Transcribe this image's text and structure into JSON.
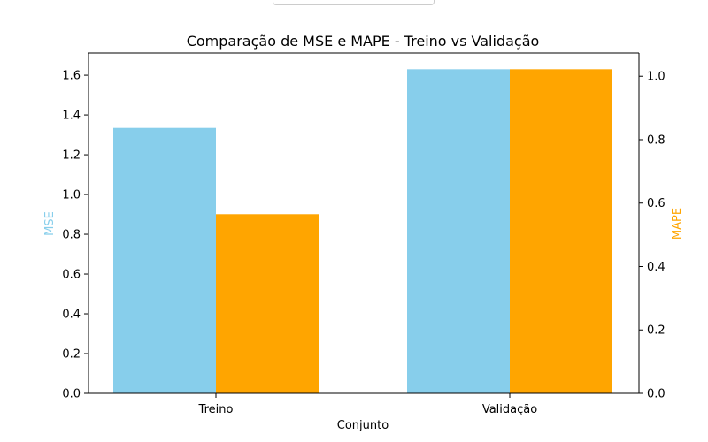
{
  "chart_data": {
    "type": "bar",
    "title": "Comparação de MSE e MAPE - Treino vs Validação",
    "xlabel": "Conjunto",
    "categories": [
      "Treino",
      "Validação"
    ],
    "series": [
      {
        "axis": "left",
        "color": "#87CEEB",
        "values": [
          1.335,
          1.63
        ]
      },
      {
        "axis": "right",
        "color": "#FFA500",
        "values": [
          0.565,
          1.022
        ]
      }
    ],
    "y_left": {
      "label": "MSE",
      "label_color": "#87CEEB",
      "lim": [
        0,
        1.7115
      ],
      "ticks": [
        0.0,
        0.2,
        0.4,
        0.6,
        0.8,
        1.0,
        1.2,
        1.4,
        1.6
      ],
      "tick_labels": [
        "0.0",
        "0.2",
        "0.4",
        "0.6",
        "0.8",
        "1.0",
        "1.2",
        "1.4",
        "1.6"
      ]
    },
    "y_right": {
      "label": "MAPE",
      "label_color": "#FFA500",
      "lim": [
        0,
        1.0731
      ],
      "ticks": [
        0.0,
        0.2,
        0.4,
        0.6,
        0.8,
        1.0
      ],
      "tick_labels": [
        "0.0",
        "0.2",
        "0.4",
        "0.6",
        "0.8",
        "1.0"
      ]
    },
    "grid": false,
    "legend_placement": "top-center"
  }
}
